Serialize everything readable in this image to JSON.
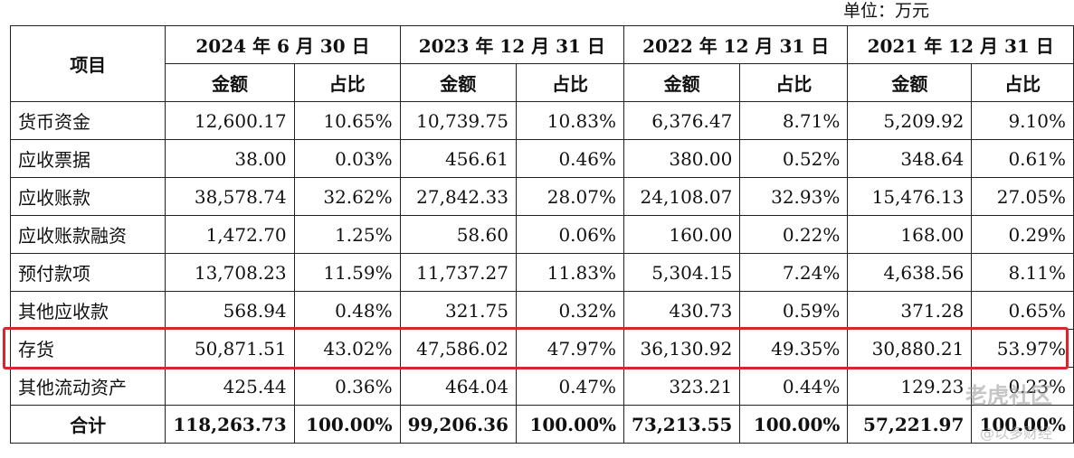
{
  "unit_label": "单位：万元",
  "header": {
    "item": "项目",
    "periods": [
      "2024 年 6 月 30 日",
      "2023 年 12 月 31 日",
      "2022 年 12 月 31 日",
      "2021 年 12 月 31 日"
    ],
    "amount": "金额",
    "ratio": "占比"
  },
  "rows": [
    {
      "name": "货币资金",
      "cells": [
        "12,600.17",
        "10.65%",
        "10,739.75",
        "10.83%",
        "6,376.47",
        "8.71%",
        "5,209.92",
        "9.10%"
      ]
    },
    {
      "name": "应收票据",
      "cells": [
        "38.00",
        "0.03%",
        "456.61",
        "0.46%",
        "380.00",
        "0.52%",
        "348.64",
        "0.61%"
      ]
    },
    {
      "name": "应收账款",
      "cells": [
        "38,578.74",
        "32.62%",
        "27,842.33",
        "28.07%",
        "24,108.07",
        "32.93%",
        "15,476.13",
        "27.05%"
      ]
    },
    {
      "name": "应收账款融资",
      "cells": [
        "1,472.70",
        "1.25%",
        "58.60",
        "0.06%",
        "160.00",
        "0.22%",
        "168.00",
        "0.29%"
      ]
    },
    {
      "name": "预付款项",
      "cells": [
        "13,708.23",
        "11.59%",
        "11,737.27",
        "11.83%",
        "5,304.15",
        "7.24%",
        "4,638.56",
        "8.11%"
      ]
    },
    {
      "name": "其他应收款",
      "cells": [
        "568.94",
        "0.48%",
        "321.75",
        "0.32%",
        "430.73",
        "0.59%",
        "371.28",
        "0.65%"
      ]
    },
    {
      "name": "存货",
      "cells": [
        "50,871.51",
        "43.02%",
        "47,586.02",
        "47.97%",
        "36,130.92",
        "49.35%",
        "30,880.21",
        "53.97%"
      ]
    },
    {
      "name": "其他流动资产",
      "cells": [
        "425.44",
        "0.36%",
        "464.04",
        "0.47%",
        "323.21",
        "0.44%",
        "129.23",
        "0.23%"
      ]
    }
  ],
  "total": {
    "name": "合计",
    "cells": [
      "118,263.73",
      "100.00%",
      "99,206.36",
      "100.00%",
      "73,213.55",
      "100.00%",
      "57,221.97",
      "100.00%"
    ]
  },
  "watermark": {
    "line1": "老虎社区",
    "line2": "@以多财经"
  },
  "highlight_color": "#d8262a"
}
